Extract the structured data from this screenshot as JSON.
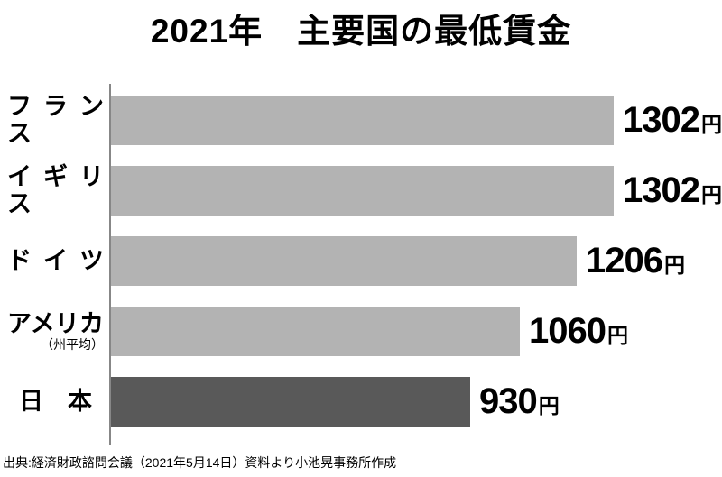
{
  "title": "2021年　主要国の最低賃金",
  "source_note": "出典:経済財政諮問会議（2021年5月14日）資料より小池晃事務所作成",
  "chart_data": {
    "type": "bar",
    "orientation": "horizontal",
    "title": "2021年　主要国の最低賃金",
    "unit": "円",
    "xlim": [
      0,
      1302
    ],
    "grid": false,
    "legend": false,
    "categories": [
      "フランス",
      "イギリス",
      "ドイツ",
      "アメリカ",
      "日本"
    ],
    "display_labels": [
      "フランス",
      "イギリス",
      "ドイツ",
      "アメリカ",
      "日　本"
    ],
    "label_align": [
      "justify",
      "justify",
      "justify",
      "justify",
      "center"
    ],
    "sublabels": [
      "",
      "",
      "",
      "（州平均）",
      ""
    ],
    "values": [
      1302,
      1302,
      1206,
      1060,
      930
    ],
    "bar_colors": [
      "#b3b3b3",
      "#b3b3b3",
      "#b3b3b3",
      "#b3b3b3",
      "#595959"
    ],
    "colors": {
      "default": "#b3b3b3",
      "highlight": "#595959",
      "axis": "#878787"
    }
  }
}
